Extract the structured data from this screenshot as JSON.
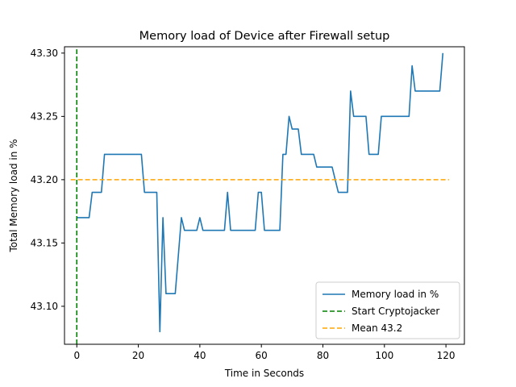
{
  "chart_data": {
    "type": "line",
    "title": "Memory load of Device after Firewall setup",
    "xlabel": "Time in Seconds",
    "ylabel": "Total Memory load in %",
    "xlim": [
      -4,
      126
    ],
    "ylim": [
      43.07,
      43.305
    ],
    "xticks": [
      0,
      20,
      40,
      60,
      80,
      100,
      120
    ],
    "yticks": [
      43.1,
      43.15,
      43.2,
      43.25,
      43.3
    ],
    "ytick_labels": [
      "43.10",
      "43.15",
      "43.20",
      "43.25",
      "43.30"
    ],
    "grid": false,
    "legend_position": "lower-right",
    "series": [
      {
        "name": "Memory load in %",
        "color": "#1f77b4",
        "style": "solid",
        "x": [
          0,
          1,
          2,
          3,
          4,
          5,
          6,
          7,
          8,
          9,
          10,
          11,
          12,
          13,
          14,
          15,
          16,
          17,
          18,
          19,
          20,
          21,
          22,
          23,
          24,
          25,
          26,
          27,
          28,
          29,
          30,
          31,
          32,
          33,
          34,
          35,
          36,
          37,
          38,
          39,
          40,
          41,
          42,
          43,
          44,
          45,
          46,
          47,
          48,
          49,
          50,
          51,
          52,
          53,
          54,
          55,
          56,
          57,
          58,
          59,
          60,
          61,
          62,
          63,
          64,
          65,
          66,
          67,
          68,
          69,
          70,
          71,
          72,
          73,
          74,
          75,
          76,
          77,
          78,
          79,
          80,
          81,
          82,
          83,
          84,
          85,
          86,
          87,
          88,
          89,
          90,
          91,
          92,
          93,
          94,
          95,
          96,
          97,
          98,
          99,
          100,
          101,
          102,
          103,
          104,
          105,
          106,
          107,
          108,
          109,
          110,
          111,
          112,
          113,
          114,
          115,
          116,
          117,
          118,
          119
        ],
        "y": [
          43.17,
          43.17,
          43.17,
          43.17,
          43.17,
          43.19,
          43.19,
          43.19,
          43.19,
          43.22,
          43.22,
          43.22,
          43.22,
          43.22,
          43.22,
          43.22,
          43.22,
          43.22,
          43.22,
          43.22,
          43.22,
          43.22,
          43.19,
          43.19,
          43.19,
          43.19,
          43.19,
          43.08,
          43.17,
          43.11,
          43.11,
          43.11,
          43.11,
          43.14,
          43.17,
          43.16,
          43.16,
          43.16,
          43.16,
          43.16,
          43.17,
          43.16,
          43.16,
          43.16,
          43.16,
          43.16,
          43.16,
          43.16,
          43.16,
          43.19,
          43.16,
          43.16,
          43.16,
          43.16,
          43.16,
          43.16,
          43.16,
          43.16,
          43.16,
          43.19,
          43.19,
          43.16,
          43.16,
          43.16,
          43.16,
          43.16,
          43.16,
          43.22,
          43.22,
          43.25,
          43.24,
          43.24,
          43.24,
          43.22,
          43.22,
          43.22,
          43.22,
          43.22,
          43.21,
          43.21,
          43.21,
          43.21,
          43.21,
          43.21,
          43.2,
          43.19,
          43.19,
          43.19,
          43.19,
          43.27,
          43.25,
          43.25,
          43.25,
          43.25,
          43.25,
          43.22,
          43.22,
          43.22,
          43.22,
          43.25,
          43.25,
          43.25,
          43.25,
          43.25,
          43.25,
          43.25,
          43.25,
          43.25,
          43.25,
          43.29,
          43.27,
          43.27,
          43.27,
          43.27,
          43.27,
          43.27,
          43.27,
          43.27,
          43.27,
          43.3
        ]
      },
      {
        "name": "Start Cryptojacker",
        "color": "#008000",
        "style": "dashed",
        "orientation": "vertical",
        "x": 0,
        "y_range": [
          43.07,
          43.303
        ]
      },
      {
        "name": "Mean 43.2",
        "color": "#ffa500",
        "style": "dashed",
        "orientation": "horizontal",
        "y": 43.2,
        "x_range": [
          -2,
          121
        ]
      }
    ]
  }
}
